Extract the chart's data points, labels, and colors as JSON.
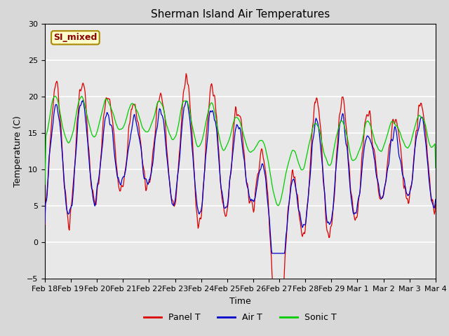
{
  "title": "Sherman Island Air Temperatures",
  "xlabel": "Time",
  "ylabel": "Temperature (C)",
  "ylim": [
    -5,
    30
  ],
  "xlim": [
    0,
    15
  ],
  "fig_facecolor": "#d8d8d8",
  "ax_facecolor": "#e8e8e8",
  "series_colors": {
    "panel": "#dd0000",
    "air": "#0000cc",
    "sonic": "#00cc00"
  },
  "legend_entries": [
    "Panel T",
    "Air T",
    "Sonic T"
  ],
  "legend_label": "SI_mixed",
  "xtick_labels": [
    "Feb 18",
    "Feb 19",
    "Feb 20",
    "Feb 21",
    "Feb 22",
    "Feb 23",
    "Feb 24",
    "Feb 25",
    "Feb 26",
    "Feb 27",
    "Feb 28",
    "Feb 29",
    "Mar 1",
    "Mar 2",
    "Mar 3",
    "Mar 4"
  ],
  "ytick_vals": [
    -5,
    0,
    5,
    10,
    15,
    20,
    25,
    30
  ],
  "title_fontsize": 11,
  "axis_label_fontsize": 9,
  "tick_fontsize": 8,
  "legend_fontsize": 9,
  "annotation_fontsize": 9
}
